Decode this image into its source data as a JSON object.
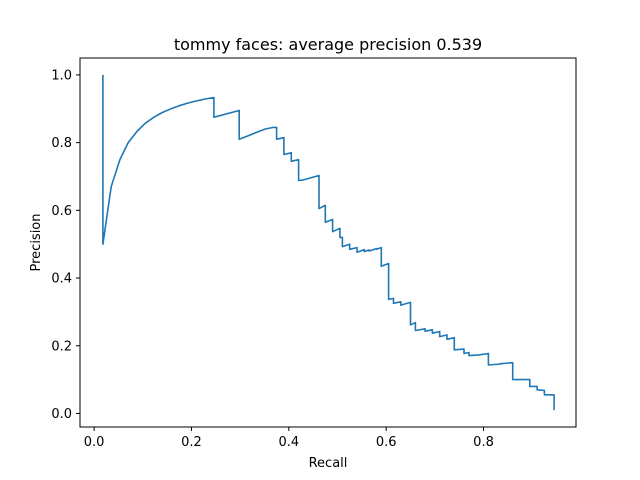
{
  "chart_data": {
    "type": "line",
    "title": "tommy faces: average precision 0.539",
    "xlabel": "Recall",
    "ylabel": "Precision",
    "xlim": [
      -0.029,
      0.99
    ],
    "ylim": [
      -0.04,
      1.05
    ],
    "xticks": [
      0.0,
      0.2,
      0.4,
      0.6,
      0.8
    ],
    "xtick_labels": [
      "0.0",
      "0.2",
      "0.4",
      "0.6",
      "0.8"
    ],
    "yticks": [
      0.0,
      0.2,
      0.4,
      0.6,
      0.8,
      1.0
    ],
    "ytick_labels": [
      "0.0",
      "0.2",
      "0.4",
      "0.6",
      "0.8",
      "1.0"
    ],
    "grid": false,
    "series": [
      {
        "color": "#1f77b4",
        "x": [
          0.018,
          0.018,
          0.035,
          0.053,
          0.07,
          0.088,
          0.105,
          0.123,
          0.14,
          0.158,
          0.175,
          0.193,
          0.21,
          0.228,
          0.246,
          0.246,
          0.298,
          0.298,
          0.316,
          0.333,
          0.351,
          0.368,
          0.375,
          0.375,
          0.39,
          0.39,
          0.405,
          0.405,
          0.42,
          0.42,
          0.43,
          0.43,
          0.462,
          0.462,
          0.475,
          0.475,
          0.49,
          0.49,
          0.505,
          0.505,
          0.51,
          0.51,
          0.525,
          0.525,
          0.54,
          0.54,
          0.555,
          0.555,
          0.565,
          0.565,
          0.58,
          0.58,
          0.59,
          0.59,
          0.605,
          0.605,
          0.615,
          0.615,
          0.63,
          0.63,
          0.65,
          0.65,
          0.66,
          0.66,
          0.68,
          0.68,
          0.695,
          0.695,
          0.71,
          0.71,
          0.725,
          0.725,
          0.74,
          0.74,
          0.76,
          0.76,
          0.77,
          0.77,
          0.79,
          0.79,
          0.81,
          0.81,
          0.835,
          0.835,
          0.86,
          0.86,
          0.895,
          0.895,
          0.91,
          0.91,
          0.925,
          0.925,
          0.945,
          0.945
        ],
        "y": [
          1.0,
          0.5,
          0.67,
          0.75,
          0.8,
          0.833,
          0.857,
          0.875,
          0.889,
          0.9,
          0.909,
          0.917,
          0.923,
          0.929,
          0.933,
          0.875,
          0.895,
          0.81,
          0.82,
          0.83,
          0.84,
          0.845,
          0.845,
          0.81,
          0.815,
          0.765,
          0.77,
          0.745,
          0.75,
          0.688,
          0.69,
          0.69,
          0.703,
          0.605,
          0.615,
          0.565,
          0.573,
          0.537,
          0.547,
          0.52,
          0.52,
          0.493,
          0.5,
          0.485,
          0.49,
          0.476,
          0.484,
          0.478,
          0.483,
          0.48,
          0.487,
          0.485,
          0.49,
          0.435,
          0.443,
          0.337,
          0.34,
          0.325,
          0.33,
          0.32,
          0.328,
          0.262,
          0.268,
          0.245,
          0.25,
          0.243,
          0.247,
          0.237,
          0.242,
          0.227,
          0.232,
          0.219,
          0.224,
          0.188,
          0.19,
          0.177,
          0.18,
          0.171,
          0.173,
          0.173,
          0.177,
          0.143,
          0.146,
          0.147,
          0.15,
          0.1,
          0.1,
          0.08,
          0.08,
          0.07,
          0.068,
          0.055,
          0.055,
          0.01
        ]
      }
    ]
  }
}
